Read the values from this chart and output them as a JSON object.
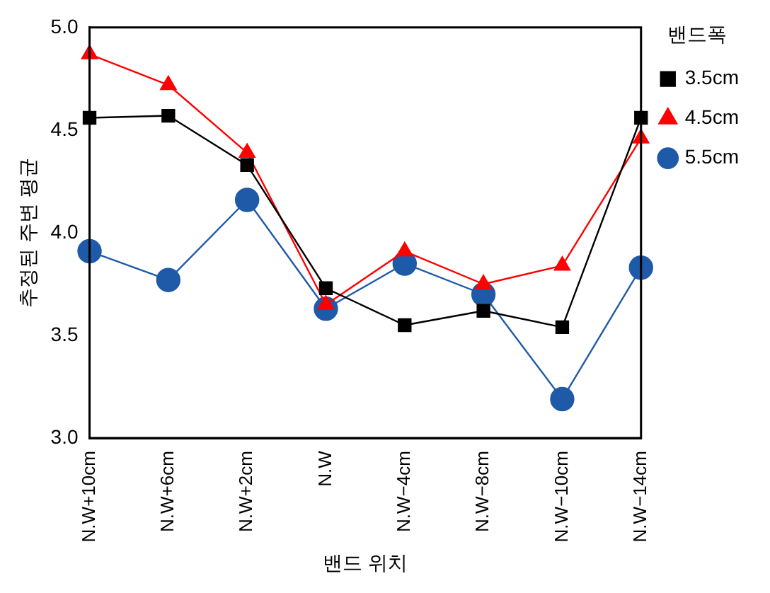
{
  "chart_data": {
    "type": "line",
    "xlabel": "밴드 위치",
    "ylabel": "추정된 주변 평균",
    "legend_title": "밴드폭",
    "categories": [
      "N.W+10cm",
      "N.W+6cm",
      "N.W+2cm",
      "N.W",
      "N.W−4cm",
      "N.W−8cm",
      "N.W−10cm",
      "N.W−14cm"
    ],
    "series": [
      {
        "name": "3.5cm",
        "color": "#000000",
        "marker": "square",
        "values": [
          4.56,
          4.57,
          4.33,
          3.73,
          3.55,
          3.62,
          3.54,
          4.56
        ]
      },
      {
        "name": "4.5cm",
        "color": "#ff0000",
        "marker": "triangle",
        "values": [
          4.87,
          4.72,
          4.39,
          3.65,
          3.91,
          3.75,
          3.84,
          4.46
        ]
      },
      {
        "name": "5.5cm",
        "color": "#1f5aa8",
        "marker": "circle",
        "values": [
          3.91,
          3.77,
          4.16,
          3.63,
          3.85,
          3.7,
          3.19,
          3.83
        ]
      }
    ],
    "ylim": [
      3.0,
      5.0
    ],
    "yticks": [
      {
        "value": 3.0,
        "label": "3.0"
      },
      {
        "value": 3.5,
        "label": "3.5"
      },
      {
        "value": 4.0,
        "label": "4.0"
      },
      {
        "value": 4.5,
        "label": "4.5"
      },
      {
        "value": 5.0,
        "label": "5.0"
      }
    ],
    "grid": false,
    "legend": "right",
    "line_style": "solid"
  }
}
